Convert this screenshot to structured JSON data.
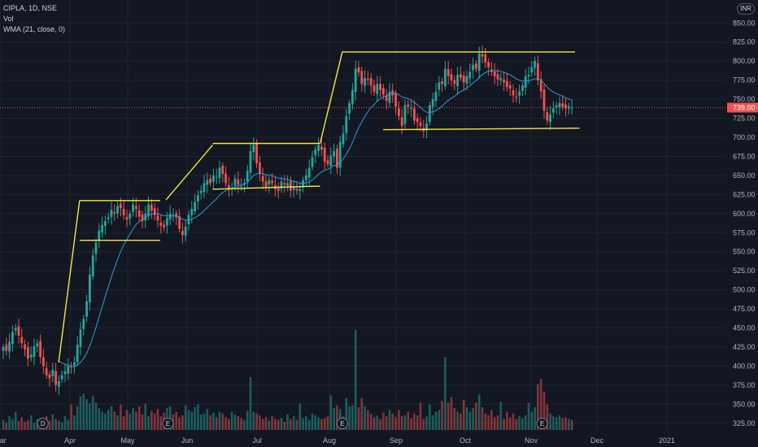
{
  "legend": {
    "symbol": "CIPLA, 1D, NSE",
    "vol": "Vol",
    "wma": "WMA (21, close, 0)"
  },
  "currency": "INR",
  "colors": {
    "up": "#26a69a",
    "down": "#ef5350",
    "wma": "#2a9fd6",
    "lines": "#f5e842",
    "bg": "#131722",
    "grid": "#1f2430",
    "text": "#b2b5be",
    "last": "#ef5350"
  },
  "chart_data": {
    "type": "candlestick",
    "symbol": "CIPLA",
    "interval": "1D",
    "exchange": "NSE",
    "currency": "INR",
    "last_price": "739.00",
    "y_ticks": [
      325,
      350,
      375,
      400,
      425,
      450,
      475,
      500,
      525,
      550,
      575,
      600,
      625,
      650,
      675,
      700,
      725,
      750,
      775,
      800,
      825,
      850
    ],
    "ylim": [
      312,
      862
    ],
    "x_labels": [
      "Mar",
      "Apr",
      "May",
      "Jun",
      "Jul",
      "Aug",
      "Sep",
      "Oct",
      "Nov",
      "Dec",
      "2021"
    ],
    "closes": [
      425,
      420,
      432,
      445,
      450,
      440,
      430,
      422,
      410,
      415,
      426,
      430,
      412,
      400,
      388,
      384,
      395,
      375,
      380,
      388,
      393,
      400,
      398,
      405,
      428,
      448,
      462,
      485,
      520,
      545,
      562,
      578,
      585,
      590,
      595,
      605,
      600,
      610,
      607,
      598,
      592,
      600,
      612,
      606,
      596,
      590,
      600,
      612,
      604,
      598,
      591,
      584,
      582,
      594,
      600,
      598,
      595,
      580,
      572,
      583,
      598,
      606,
      615,
      624,
      630,
      640,
      644,
      640,
      650,
      648,
      660,
      652,
      640,
      632,
      634,
      646,
      638,
      636,
      640,
      656,
      682,
      690,
      666,
      652,
      642,
      635,
      644,
      640,
      632,
      630,
      642,
      638,
      640,
      630,
      635,
      630,
      632,
      644,
      650,
      660,
      674,
      684,
      690,
      684,
      668,
      665,
      676,
      682,
      660,
      694,
      705,
      728,
      745,
      762,
      790,
      785,
      770,
      778,
      775,
      768,
      760,
      770,
      762,
      756,
      748,
      760,
      755,
      740,
      728,
      715,
      742,
      740,
      738,
      722,
      720,
      715,
      708,
      718,
      742,
      750,
      760,
      772,
      770,
      790,
      780,
      775,
      770,
      782,
      778,
      772,
      780,
      786,
      795,
      790,
      810,
      806,
      798,
      792,
      786,
      780,
      776,
      778,
      772,
      766,
      764,
      755,
      752,
      760,
      768,
      780,
      782,
      792,
      800,
      775,
      760,
      735,
      722,
      730,
      738,
      742,
      745,
      740,
      738,
      741,
      739
    ],
    "volumes": [
      1.1,
      0.8,
      1.5,
      1.2,
      2.0,
      1.0,
      1.4,
      0.9,
      1.1,
      1.6,
      0.8,
      1.2,
      1.3,
      0.9,
      1.5,
      1.0,
      1.7,
      1.2,
      1.0,
      0.8,
      1.5,
      1.1,
      2.8,
      1.6,
      2.6,
      3.7,
      4.0,
      3.4,
      2.9,
      3.7,
      3.0,
      2.4,
      2.0,
      1.8,
      2.2,
      2.6,
      2.0,
      1.6,
      2.8,
      1.5,
      2.2,
      1.8,
      2.4,
      2.0,
      2.6,
      1.7,
      2.9,
      1.5,
      2.1,
      1.8,
      2.3,
      1.5,
      1.9,
      2.4,
      2.6,
      1.7,
      2.0,
      1.4,
      1.6,
      2.7,
      2.2,
      2.0,
      2.5,
      2.8,
      1.7,
      1.8,
      2.3,
      1.6,
      1.9,
      1.4,
      2.0,
      1.8,
      1.4,
      1.2,
      2.0,
      1.7,
      1.5,
      1.3,
      1.1,
      2.1,
      5.8,
      2.0,
      1.8,
      1.6,
      1.2,
      1.4,
      1.0,
      1.5,
      1.2,
      1.1,
      1.3,
      0.9,
      1.7,
      1.2,
      1.5,
      1.1,
      2.9,
      1.3,
      1.5,
      1.1,
      1.8,
      1.6,
      1.4,
      1.2,
      1.3,
      1.5,
      3.8,
      2.4,
      2.7,
      2.3,
      1.5,
      3.5,
      2.6,
      2.7,
      11.0,
      2.5,
      3.5,
      2.6,
      2.2,
      1.8,
      1.4,
      1.6,
      1.2,
      1.9,
      1.5,
      2.2,
      1.8,
      1.4,
      2.2,
      1.5,
      1.6,
      2.0,
      1.3,
      1.8,
      1.6,
      3.0,
      1.2,
      1.5,
      2.8,
      1.6,
      2.0,
      2.2,
      3.2,
      8.0,
      3.0,
      3.6,
      2.4,
      2.0,
      1.8,
      3.3,
      2.5,
      2.0,
      2.4,
      3.0,
      3.9,
      2.5,
      1.8,
      1.6,
      2.2,
      1.4,
      1.6,
      3.1,
      1.2,
      2.0,
      1.4,
      1.8,
      1.2,
      1.5,
      1.3,
      1.6,
      3.0,
      2.0,
      2.5,
      5.0,
      5.6,
      4.2,
      2.8,
      1.8,
      1.5,
      1.4,
      1.6,
      1.3,
      1.4,
      1.2,
      1.1
    ],
    "wma_start_index": 18,
    "trend_lines": [
      {
        "from": [
          "2020-03-27",
          405
        ],
        "to": [
          "2020-04-06",
          617
        ]
      },
      {
        "from": [
          "2020-04-06",
          617
        ],
        "to": [
          "2020-05-18",
          617
        ]
      },
      {
        "from": [
          "2020-04-06",
          565
        ],
        "to": [
          "2020-05-18",
          565
        ]
      },
      {
        "from": [
          "2020-05-21",
          618
        ],
        "to": [
          "2020-06-12",
          690
        ]
      },
      {
        "from": [
          "2020-06-12",
          692
        ],
        "to": [
          "2020-07-28",
          692
        ]
      },
      {
        "from": [
          "2020-06-12",
          632
        ],
        "to": [
          "2020-07-28",
          636
        ]
      },
      {
        "from": [
          "2020-07-28",
          692
        ],
        "to": [
          "2020-08-07",
          812
        ]
      },
      {
        "from": [
          "2020-08-07",
          812
        ],
        "to": [
          "2020-11-21",
          812
        ]
      },
      {
        "from": [
          "2020-08-26",
          710
        ],
        "to": [
          "2020-11-23",
          712
        ]
      }
    ],
    "events": [
      {
        "label": "D",
        "date": "2020-03-20"
      },
      {
        "label": "E",
        "date": "2020-05-22"
      },
      {
        "label": "E",
        "date": "2020-08-07"
      },
      {
        "label": "E",
        "date": "2020-11-06"
      }
    ]
  }
}
